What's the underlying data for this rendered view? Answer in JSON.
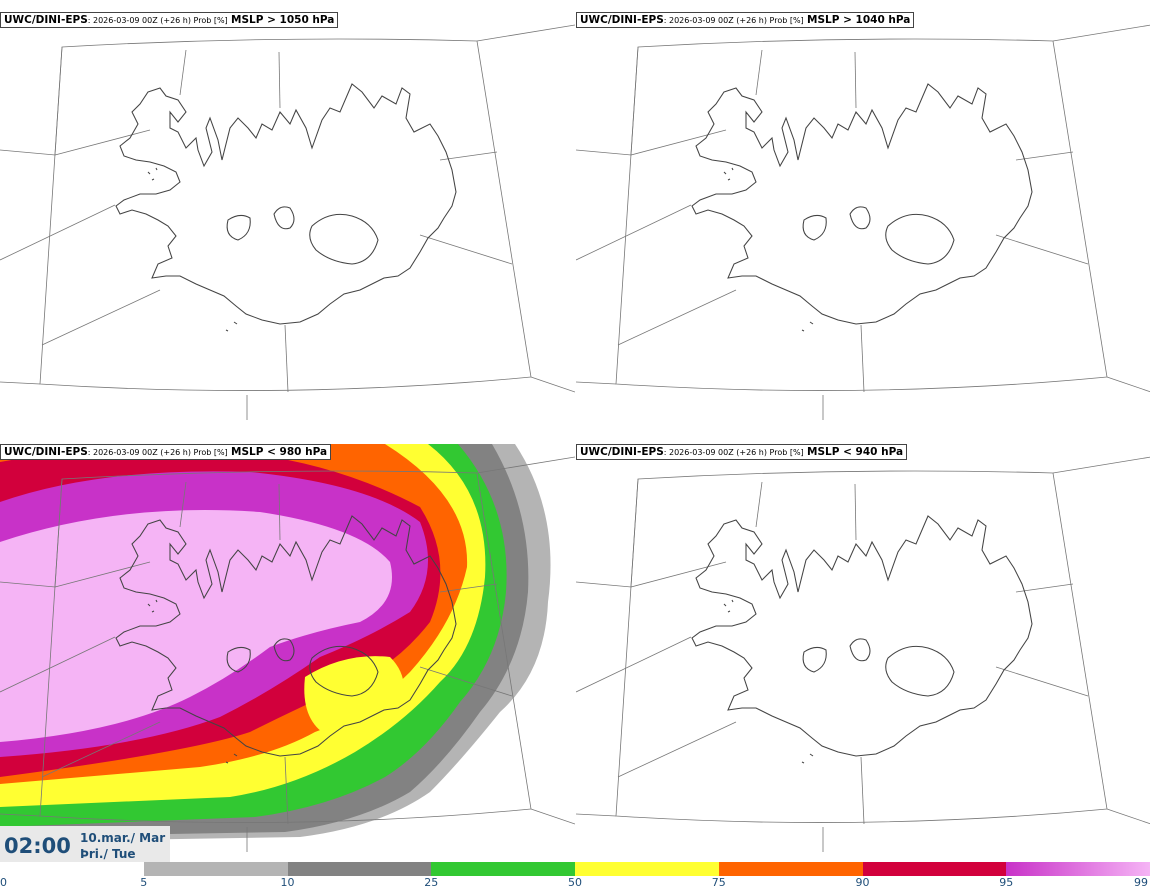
{
  "panels": [
    {
      "model": "UWC/DINI-EPS",
      "meta": ": 2026-03-09 00Z (+26 h) Prob [%]",
      "threshold": "MSLP > 1050 hPa",
      "filled": false
    },
    {
      "model": "UWC/DINI-EPS",
      "meta": ": 2026-03-09 00Z (+26 h) Prob [%]",
      "threshold": "MSLP > 1040 hPa",
      "filled": false
    },
    {
      "model": "UWC/DINI-EPS",
      "meta": ": 2026-03-09 00Z (+26 h) Prob [%]",
      "threshold": "MSLP < 980 hPa",
      "filled": true
    },
    {
      "model": "UWC/DINI-EPS",
      "meta": ": 2026-03-09 00Z (+26 h) Prob [%]",
      "threshold": "MSLP < 940 hPa",
      "filled": false
    }
  ],
  "valid_time": {
    "time": "02:00",
    "date_line1": "10.mar./ Mar",
    "date_line2": "Þri./ Tue"
  },
  "colorbar": {
    "labels": [
      "0",
      "5",
      "10",
      "25",
      "50",
      "75",
      "90",
      "95",
      "99"
    ],
    "colors": [
      "#ffffff",
      "#b4b4b4",
      "#828282",
      "#32c832",
      "#ffff32",
      "#ff6400",
      "#d2003c",
      "#c832c8",
      "#f5b4f5"
    ]
  }
}
